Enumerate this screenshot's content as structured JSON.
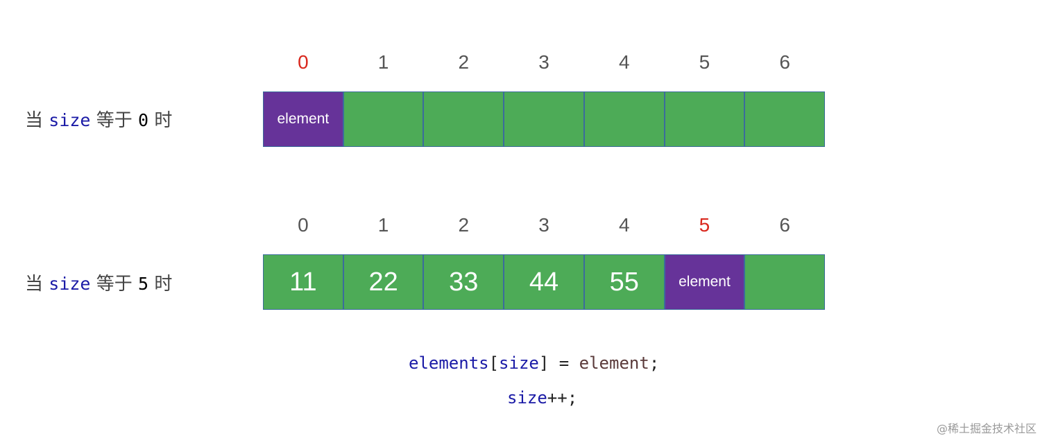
{
  "rows": [
    {
      "label": {
        "prefix": "当",
        "keyword": "size",
        "middle": "等于",
        "value": "0",
        "suffix": "时"
      },
      "highlight_index": 0,
      "indices": [
        "0",
        "1",
        "2",
        "3",
        "4",
        "5",
        "6"
      ],
      "cells": [
        "element",
        "",
        "",
        "",
        "",
        "",
        ""
      ]
    },
    {
      "label": {
        "prefix": "当",
        "keyword": "size",
        "middle": "等于",
        "value": "5",
        "suffix": "时"
      },
      "highlight_index": 5,
      "indices": [
        "0",
        "1",
        "2",
        "3",
        "4",
        "5",
        "6"
      ],
      "cells": [
        "11",
        "22",
        "33",
        "44",
        "55",
        "element",
        ""
      ]
    }
  ],
  "code": {
    "line1": {
      "array": "elements",
      "open": "[",
      "index": "size",
      "close": "]",
      "op": " = ",
      "value": "element",
      "end": ";"
    },
    "line2": {
      "var": "size",
      "op": "++",
      "end": ";"
    }
  },
  "colors": {
    "cell": "#4dab57",
    "element_cell": "#663399",
    "highlight_index": "#d9281e",
    "keyword": "#1a1aa6"
  },
  "watermark": "@稀土掘金技术社区"
}
